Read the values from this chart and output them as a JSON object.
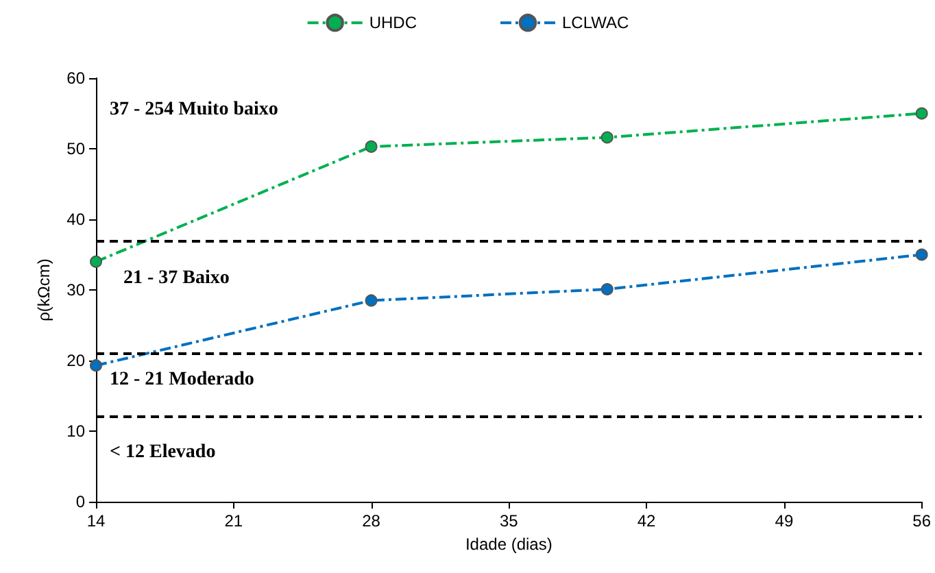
{
  "chart_data": {
    "type": "line",
    "xlabel": "Idade (dias)",
    "ylabel": "ρ(kΩcm)",
    "x": [
      14,
      28,
      40,
      56
    ],
    "series": [
      {
        "name": "UHDC",
        "color": "#00b050",
        "values": [
          34,
          50.3,
          51.6,
          55
        ]
      },
      {
        "name": "LCLWAC",
        "color": "#0070c0",
        "values": [
          19.3,
          28.5,
          30.1,
          35
        ]
      }
    ],
    "xlim": [
      14,
      56
    ],
    "xticks": [
      14,
      21,
      28,
      35,
      42,
      49,
      56
    ],
    "ylim": [
      0,
      60
    ],
    "yticks": [
      0,
      10,
      20,
      30,
      40,
      50,
      60
    ],
    "ref_lines": [
      {
        "axis": "y",
        "value": 37,
        "color": "#000000",
        "line_style": "dashed"
      },
      {
        "axis": "y",
        "value": 21,
        "color": "#000000",
        "line_style": "dashed"
      },
      {
        "axis": "y",
        "value": 12,
        "color": "#000000",
        "line_style": "dashed"
      }
    ],
    "annotations": [
      "37 - 254 Muito baixo",
      "21 - 37 Baixo",
      "12 - 21 Moderado",
      "< 12 Elevado"
    ],
    "marker": "circle",
    "line_style": "dashed",
    "legend": "top",
    "grid": false
  }
}
